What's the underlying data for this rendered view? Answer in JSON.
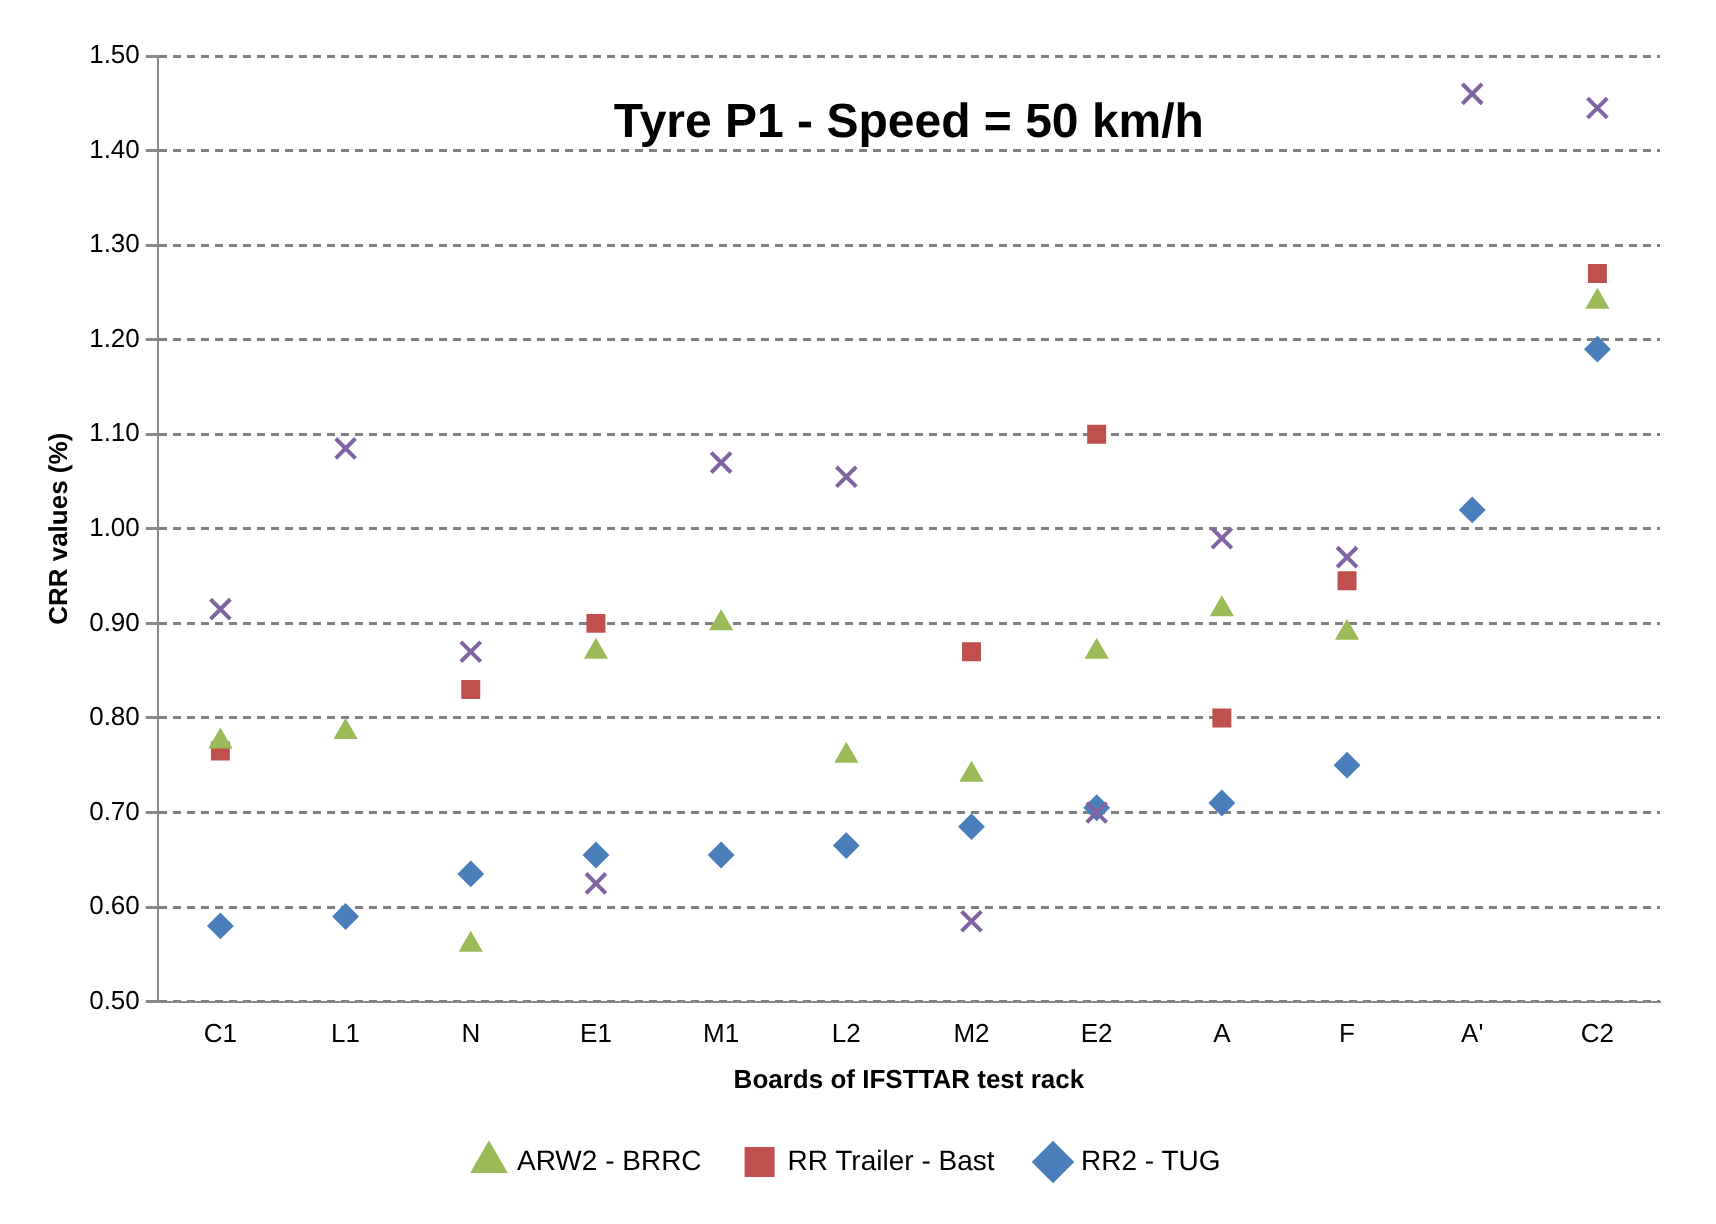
{
  "chart_data": {
    "type": "scatter",
    "title": "Tyre P1 - Speed = 50 km/h",
    "xlabel": "Boards of IFSTTAR test rack",
    "ylabel": "CRR values (%)",
    "categories": [
      "C1",
      "L1",
      "N",
      "E1",
      "M1",
      "L2",
      "M2",
      "E2",
      "A",
      "F",
      "A'",
      "C2"
    ],
    "series": [
      {
        "name": "RR2 - TUG",
        "color": "#4a7ebb",
        "marker": "diamond",
        "values": [
          0.58,
          0.59,
          0.635,
          0.655,
          0.655,
          0.665,
          0.685,
          0.705,
          0.71,
          0.75,
          1.02,
          1.19
        ]
      },
      {
        "name": "RR Trailer - Bast",
        "color": "#c0504d",
        "marker": "square",
        "values": [
          0.765,
          null,
          0.83,
          0.9,
          null,
          null,
          0.87,
          1.1,
          0.8,
          0.945,
          null,
          1.27
        ]
      },
      {
        "name": "ARW2 - BRRC",
        "color": "#9bbb59",
        "marker": "triangle",
        "values": [
          0.775,
          0.785,
          0.56,
          0.87,
          0.9,
          0.76,
          0.74,
          0.87,
          0.915,
          0.89,
          null,
          1.24
        ]
      },
      {
        "color": "#8064a2",
        "marker": "cross",
        "values": [
          0.915,
          1.085,
          0.87,
          0.625,
          1.07,
          1.055,
          0.585,
          0.7,
          0.99,
          0.97,
          1.46,
          1.445
        ]
      }
    ],
    "ylim": [
      0.5,
      1.5
    ],
    "yticks": [
      {
        "value": 0.5,
        "label": "0.50"
      },
      {
        "value": 0.6,
        "label": "0.60"
      },
      {
        "value": 0.7,
        "label": "0.70"
      },
      {
        "value": 0.8,
        "label": "0.80"
      },
      {
        "value": 0.9,
        "label": "0.90"
      },
      {
        "value": 1.0,
        "label": "1.00"
      },
      {
        "value": 1.1,
        "label": "1.10"
      },
      {
        "value": 1.2,
        "label": "1.20"
      },
      {
        "value": 1.3,
        "label": "1.30"
      },
      {
        "value": 1.4,
        "label": "1.40"
      },
      {
        "value": 1.5,
        "label": "1.50"
      }
    ],
    "grid": "y",
    "legend": "bottom"
  }
}
